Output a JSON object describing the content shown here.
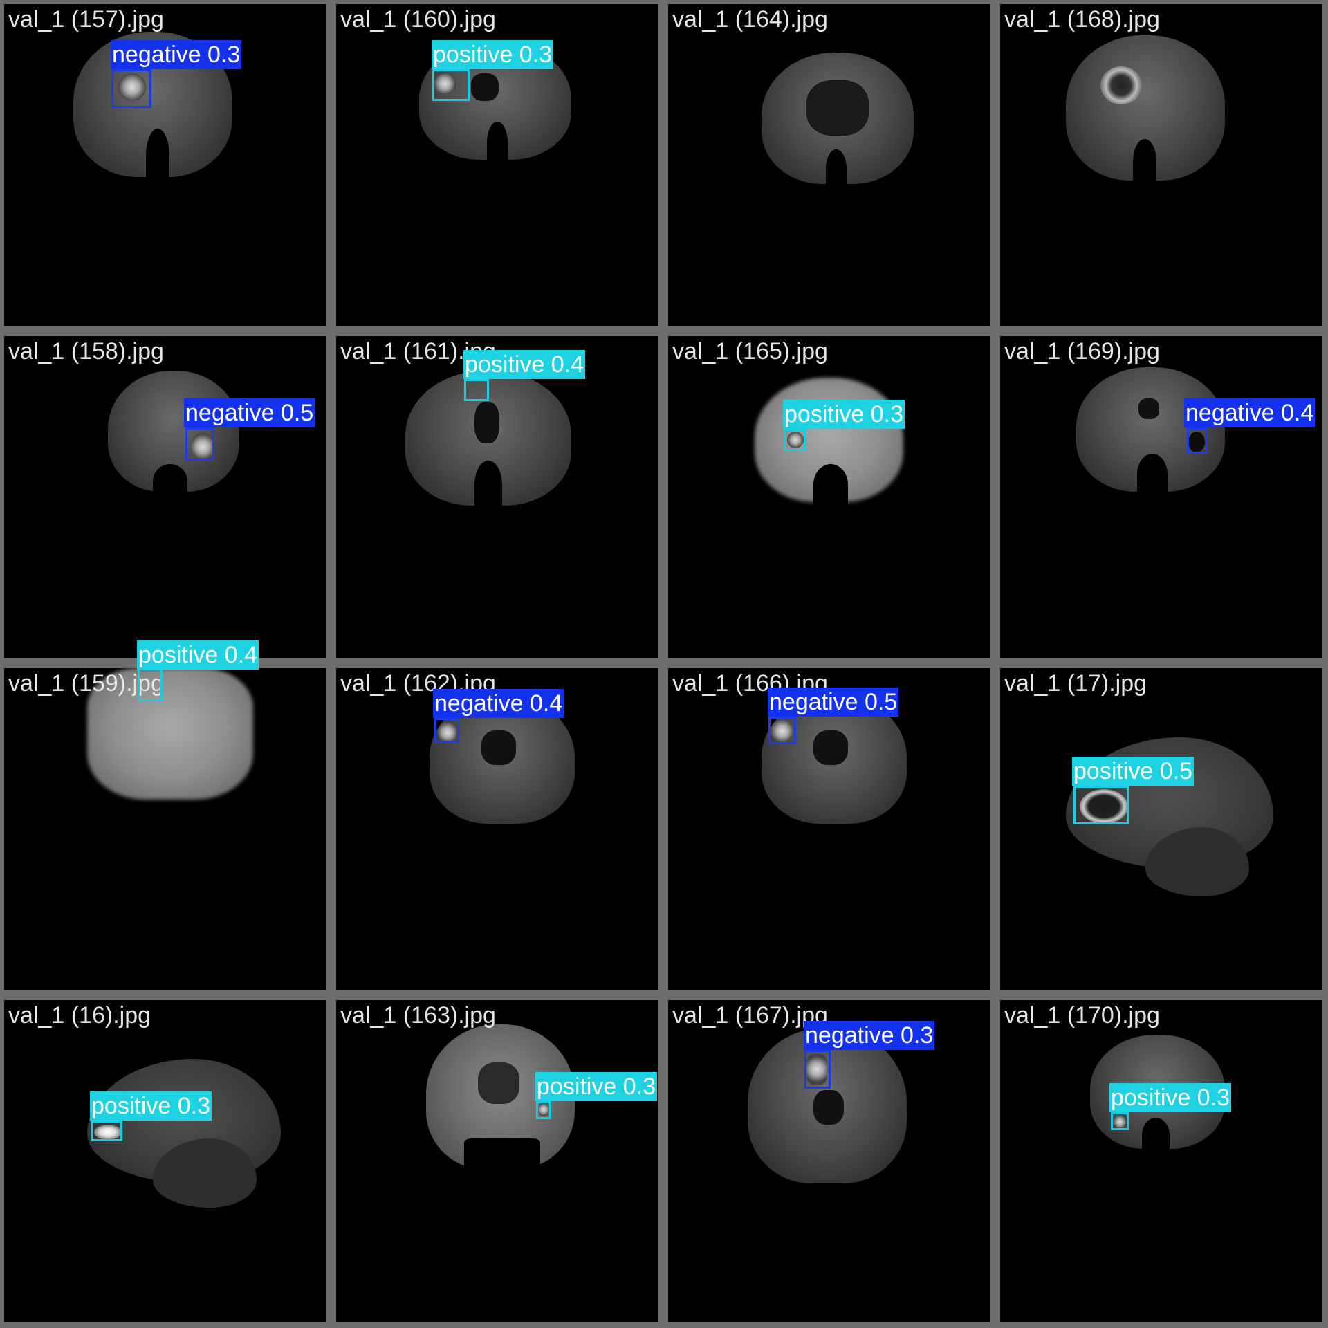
{
  "colors": {
    "negative": "#1432ee",
    "positive": "#1ed2e2",
    "tile_background": "#000000",
    "grid_border": "#6e6e6e"
  },
  "tiles": [
    {
      "filename": "val_1 (157).jpg",
      "detection": {
        "label": "negative 0.3",
        "class": "negative"
      }
    },
    {
      "filename": "val_1 (160).jpg",
      "detection": {
        "label": "positive 0.3",
        "class": "positive"
      }
    },
    {
      "filename": "val_1 (164).jpg",
      "detection": null
    },
    {
      "filename": "val_1 (168).jpg",
      "detection": null
    },
    {
      "filename": "val_1 (158).jpg",
      "detection": {
        "label": "negative 0.5",
        "class": "negative"
      }
    },
    {
      "filename": "val_1 (161).jpg",
      "detection": {
        "label": "positive 0.4",
        "class": "positive"
      }
    },
    {
      "filename": "val_1 (165).jpg",
      "detection": {
        "label": "positive 0.3",
        "class": "positive"
      }
    },
    {
      "filename": "val_1 (169).jpg",
      "detection": {
        "label": "negative 0.4",
        "class": "negative"
      }
    },
    {
      "filename": "val_1 (159).jpg",
      "detection": {
        "label": "positive 0.4",
        "class": "positive"
      }
    },
    {
      "filename": "val_1 (162).jpg",
      "detection": {
        "label": "negative 0.4",
        "class": "negative"
      }
    },
    {
      "filename": "val_1 (166).jpg",
      "detection": {
        "label": "negative 0.5",
        "class": "negative"
      }
    },
    {
      "filename": "val_1 (17).jpg",
      "detection": {
        "label": "positive 0.5",
        "class": "positive"
      }
    },
    {
      "filename": "val_1 (16).jpg",
      "detection": {
        "label": "positive 0.3",
        "class": "positive"
      }
    },
    {
      "filename": "val_1 (163).jpg",
      "detection": {
        "label": "positive 0.3",
        "class": "positive"
      }
    },
    {
      "filename": "val_1 (167).jpg",
      "detection": {
        "label": "negative 0.3",
        "class": "negative"
      }
    },
    {
      "filename": "val_1 (170).jpg",
      "detection": {
        "label": "positive 0.3",
        "class": "positive"
      }
    }
  ]
}
